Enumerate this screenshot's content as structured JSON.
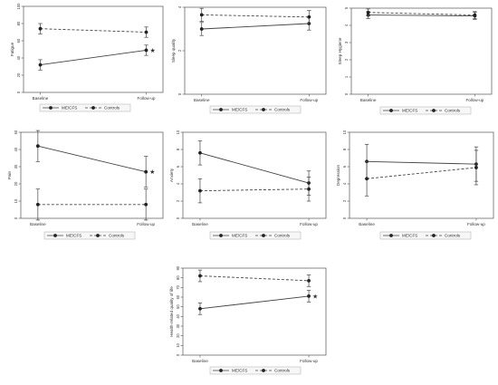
{
  "legend_labels": {
    "mecfs": "ME/CFS",
    "controls": "Controls"
  },
  "styles": {
    "frame_color": "#555555",
    "line_color": "#444444",
    "legend_fill": "#f7f7f7"
  },
  "chart_data": [
    {
      "type": "line",
      "id": "fatigue",
      "ylabel": "Fatigue",
      "categories": [
        "Baseline",
        "Follow-up"
      ],
      "ylim": [
        0,
        100
      ],
      "yticks": [
        0,
        20,
        40,
        60,
        80,
        100
      ],
      "series": [
        {
          "name": "ME/CFS",
          "style": "solid",
          "values": [
            32,
            49
          ],
          "err": [
            6,
            6
          ]
        },
        {
          "name": "Controls",
          "style": "dashed",
          "values": [
            74,
            70
          ],
          "err": [
            6,
            6
          ]
        }
      ],
      "significance": {
        "mark": "★",
        "at": "Follow-up",
        "series": "ME/CFS"
      },
      "grid": false,
      "legend": "bottom"
    },
    {
      "type": "line",
      "id": "sleep-quality",
      "ylabel": "Sleep quality",
      "categories": [
        "Baseline",
        "Follow-up"
      ],
      "ylim": [
        0,
        4
      ],
      "yticks": [
        0,
        2,
        4
      ],
      "series": [
        {
          "name": "ME/CFS",
          "style": "solid",
          "values": [
            3.0,
            3.25
          ],
          "err": [
            0.3,
            0.3
          ]
        },
        {
          "name": "Controls",
          "style": "dashed",
          "values": [
            3.65,
            3.55
          ],
          "err": [
            0.3,
            0.3
          ]
        }
      ],
      "grid": false,
      "legend": "bottom"
    },
    {
      "type": "line",
      "id": "sleep-hygiene",
      "ylabel": "Sleep Hygiene",
      "categories": [
        "Baseline",
        "Follow-up"
      ],
      "ylim": [
        0,
        5
      ],
      "yticks": [
        0,
        1,
        2,
        3,
        4,
        5
      ],
      "series": [
        {
          "name": "ME/CFS",
          "style": "solid",
          "values": [
            4.6,
            4.55
          ],
          "err": [
            0.2,
            0.2
          ]
        },
        {
          "name": "Controls",
          "style": "dashed",
          "values": [
            4.75,
            4.6
          ],
          "err": [
            0.2,
            0.2
          ]
        }
      ],
      "grid": false,
      "legend": "bottom"
    },
    {
      "type": "line",
      "id": "pain",
      "ylabel": "Pain",
      "categories": [
        "Baseline",
        "Follow-up"
      ],
      "ylim": [
        0,
        50
      ],
      "yticks": [
        0,
        10,
        20,
        30,
        40,
        50
      ],
      "series": [
        {
          "name": "ME/CFS",
          "style": "solid",
          "values": [
            42,
            27
          ],
          "err": [
            9,
            9
          ]
        },
        {
          "name": "Controls",
          "style": "dashed",
          "values": [
            8,
            8
          ],
          "err": [
            9,
            9
          ]
        }
      ],
      "significance": {
        "mark": "★",
        "at": "Follow-up",
        "series": "ME/CFS"
      },
      "grid": false,
      "legend": "bottom"
    },
    {
      "type": "line",
      "id": "anxiety",
      "ylabel": "Anxiety",
      "categories": [
        "Baseline",
        "Follow-up"
      ],
      "ylim": [
        0,
        10
      ],
      "yticks": [
        0,
        2,
        4,
        6,
        8,
        10
      ],
      "series": [
        {
          "name": "ME/CFS",
          "style": "solid",
          "values": [
            7.6,
            4.1
          ],
          "err": [
            1.4,
            1.4
          ]
        },
        {
          "name": "Controls",
          "style": "dashed",
          "values": [
            3.2,
            3.4
          ],
          "err": [
            1.4,
            1.4
          ]
        }
      ],
      "grid": false,
      "legend": "bottom"
    },
    {
      "type": "line",
      "id": "depression",
      "ylabel": "Depression",
      "categories": [
        "Baseline",
        "Follow-up"
      ],
      "ylim": [
        0,
        10
      ],
      "yticks": [
        0,
        2,
        4,
        6,
        8,
        10
      ],
      "series": [
        {
          "name": "ME/CFS",
          "style": "solid",
          "values": [
            6.6,
            6.3
          ],
          "err": [
            2.0,
            2.0
          ]
        },
        {
          "name": "Controls",
          "style": "dashed",
          "values": [
            4.6,
            5.9
          ],
          "err": [
            2.0,
            2.0
          ]
        }
      ],
      "grid": false,
      "legend": "bottom"
    },
    {
      "type": "line",
      "id": "hrqol",
      "ylabel": "Health-related quality of life",
      "categories": [
        "Baseline",
        "Follow-up"
      ],
      "ylim": [
        0,
        90
      ],
      "yticks": [
        0,
        10,
        20,
        30,
        40,
        50,
        60,
        70,
        80,
        90
      ],
      "series": [
        {
          "name": "ME/CFS",
          "style": "solid",
          "values": [
            48,
            61
          ],
          "err": [
            6,
            6
          ]
        },
        {
          "name": "Controls",
          "style": "dashed",
          "values": [
            82,
            77
          ],
          "err": [
            6,
            6
          ]
        }
      ],
      "significance": {
        "mark": "★",
        "at": "Follow-up",
        "series": "ME/CFS"
      },
      "grid": false,
      "legend": "bottom"
    }
  ]
}
